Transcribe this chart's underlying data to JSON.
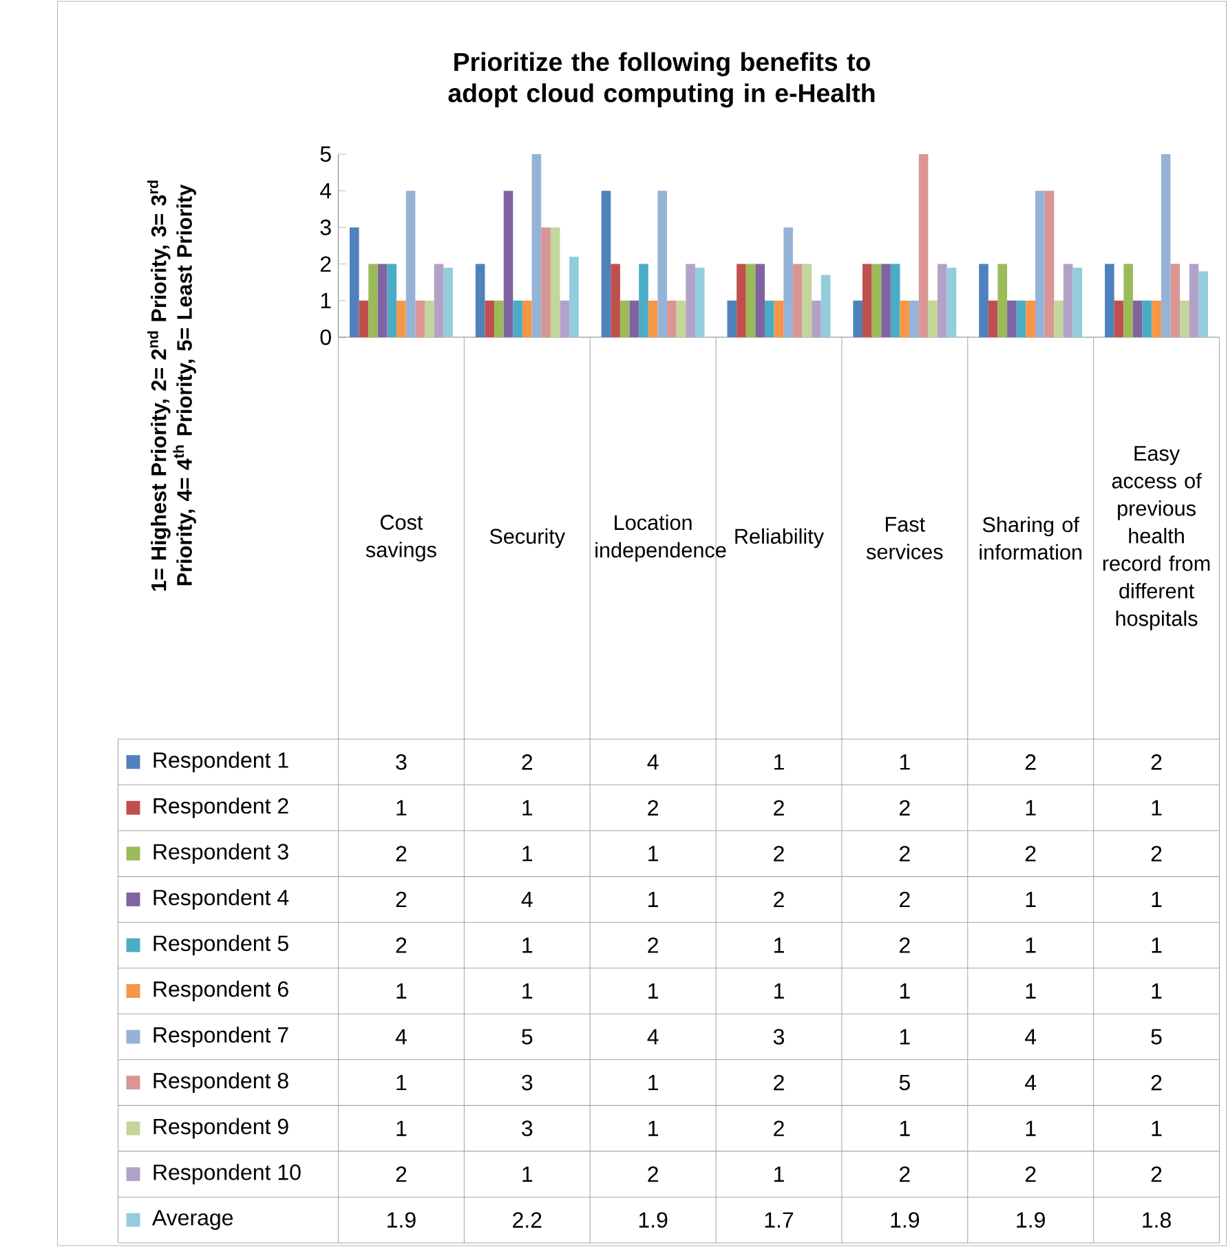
{
  "chart_data": {
    "type": "bar",
    "title": "Prioritize the following benefits to adopt cloud computing in e-Health",
    "ylabel": "1= Highest Priority, 2= 2$^{nd}$ Priority, 3= 3$^{rd}$ Priority, 4= 4$^{th}$ Priority, 5= Least Priority",
    "categories": [
      "Cost savings",
      "Security",
      "Location independence",
      "Reliability",
      "Fast services",
      "Sharing of information",
      "Easy access of previous health record from different hospitals"
    ],
    "series": [
      {
        "name": "Respondent 1",
        "color": "#4f81bd",
        "values": [
          3,
          2,
          4,
          1,
          1,
          2,
          2
        ]
      },
      {
        "name": "Respondent 2",
        "color": "#c0504d",
        "values": [
          1,
          1,
          2,
          2,
          2,
          1,
          1
        ]
      },
      {
        "name": "Respondent 3",
        "color": "#9bbb59",
        "values": [
          2,
          1,
          1,
          2,
          2,
          2,
          2
        ]
      },
      {
        "name": "Respondent 4",
        "color": "#8064a2",
        "values": [
          2,
          4,
          1,
          2,
          2,
          1,
          1
        ]
      },
      {
        "name": "Respondent 5",
        "color": "#4bacc6",
        "values": [
          2,
          1,
          2,
          1,
          2,
          1,
          1
        ]
      },
      {
        "name": "Respondent 6",
        "color": "#f79646",
        "values": [
          1,
          1,
          1,
          1,
          1,
          1,
          1
        ]
      },
      {
        "name": "Respondent 7",
        "color": "#95b3d7",
        "values": [
          4,
          5,
          4,
          3,
          1,
          4,
          5
        ]
      },
      {
        "name": "Respondent 8",
        "color": "#d99694",
        "values": [
          1,
          3,
          1,
          2,
          5,
          4,
          2
        ]
      },
      {
        "name": "Respondent 9",
        "color": "#c3d69b",
        "values": [
          1,
          3,
          1,
          2,
          1,
          1,
          1
        ]
      },
      {
        "name": "Respondent 10",
        "color": "#b3a2c7",
        "values": [
          2,
          1,
          2,
          1,
          2,
          2,
          2
        ]
      },
      {
        "name": "Average",
        "color": "#93cddd",
        "values": [
          1.9,
          2.2,
          1.9,
          1.7,
          1.9,
          1.9,
          1.8
        ]
      }
    ],
    "ylim": [
      0,
      5
    ],
    "yticks": [
      0,
      1,
      2,
      3,
      4,
      5
    ],
    "legend": "bottom",
    "data_labels": true
  }
}
